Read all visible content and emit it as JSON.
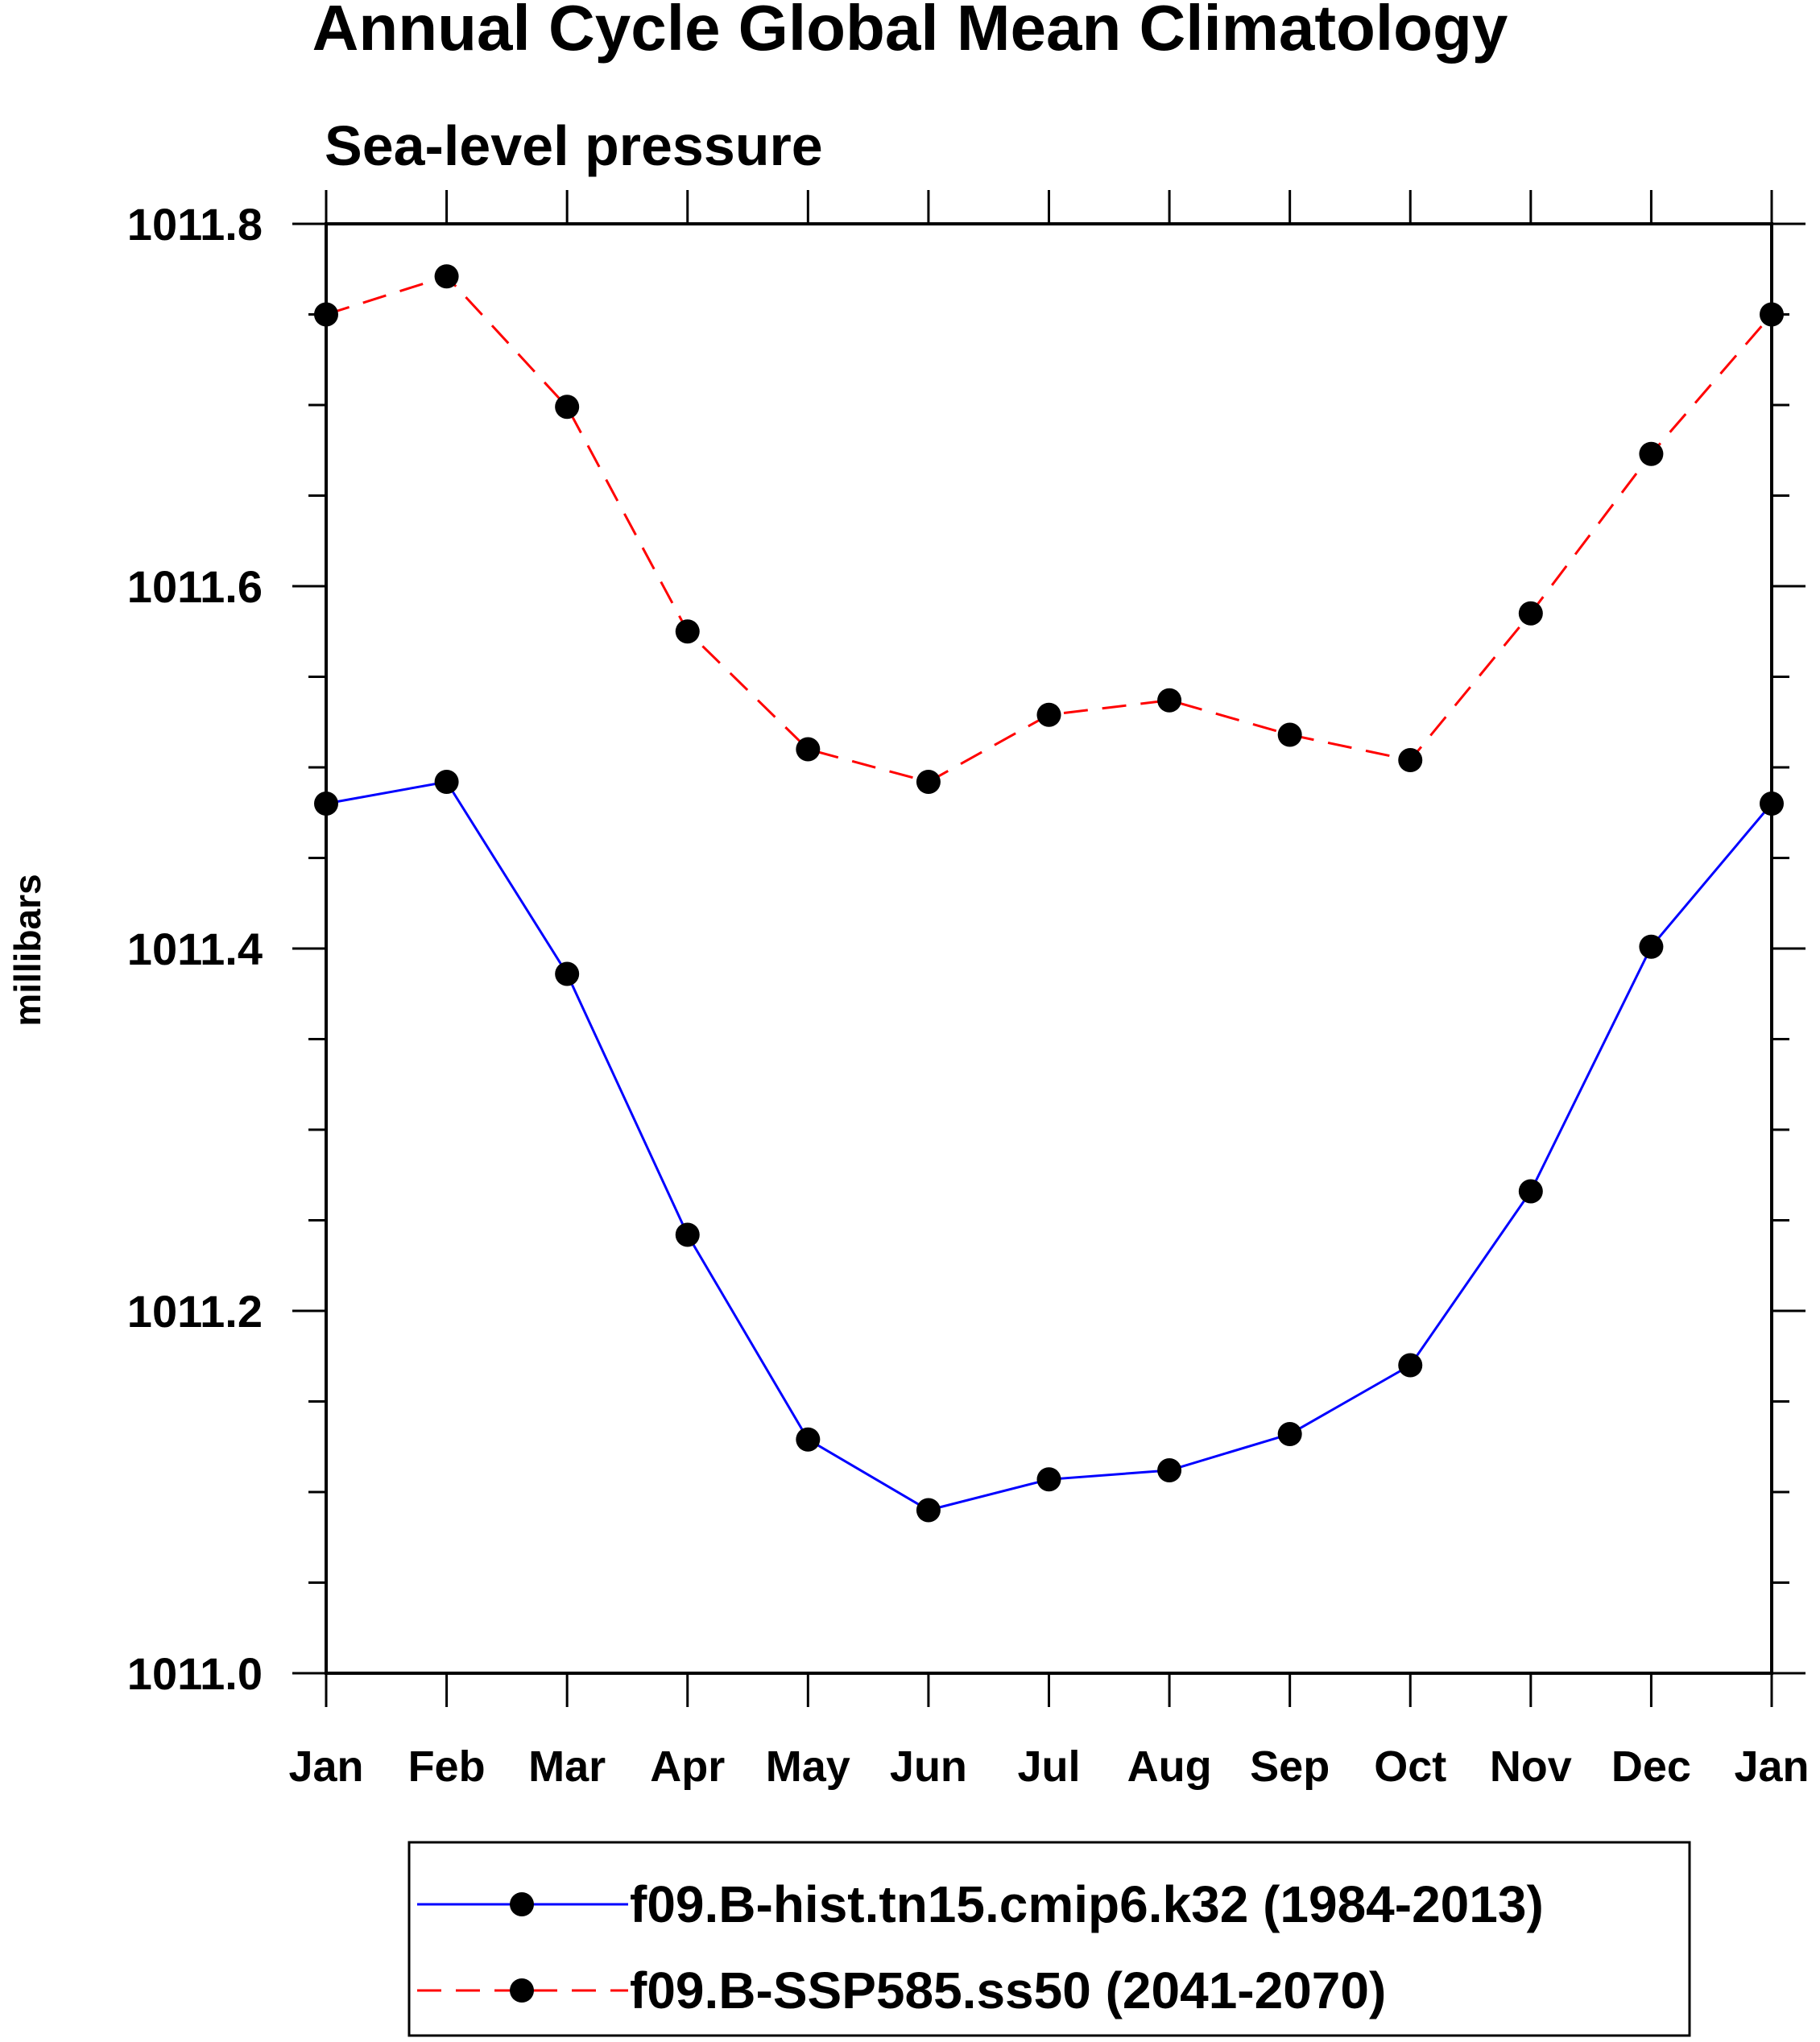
{
  "chart_data": {
    "type": "line",
    "title": "Annual Cycle Global Mean Climatology",
    "subtitle": "Sea-level pressure",
    "ylabel": "millibars",
    "xlabel": "",
    "categories": [
      "Jan",
      "Feb",
      "Mar",
      "Apr",
      "May",
      "Jun",
      "Jul",
      "Aug",
      "Sep",
      "Oct",
      "Nov",
      "Dec",
      "Jan"
    ],
    "ylim": [
      1011.0,
      1011.8
    ],
    "yticks": [
      "1011.0",
      "1011.2",
      "1011.4",
      "1011.6",
      "1011.8"
    ],
    "yminor_step": 0.05,
    "legend_position": "bottom-center",
    "series": [
      {
        "name": "f09.B-hist.tn15.cmip6.k32 (1984-2013)",
        "color": "#0000ff",
        "dash": "solid",
        "marker": "filled-circle",
        "values": [
          1011.48,
          1011.492,
          1011.386,
          1011.242,
          1011.129,
          1011.09,
          1011.107,
          1011.112,
          1011.132,
          1011.17,
          1011.266,
          1011.401,
          1011.48
        ]
      },
      {
        "name": "f09.B-SSP585.ss50 (2041-2070)",
        "color": "#ff0000",
        "dash": "dashed",
        "marker": "filled-circle",
        "values": [
          1011.75,
          1011.771,
          1011.699,
          1011.575,
          1011.51,
          1011.492,
          1011.529,
          1011.537,
          1011.518,
          1011.504,
          1011.585,
          1011.673,
          1011.75
        ]
      }
    ]
  }
}
